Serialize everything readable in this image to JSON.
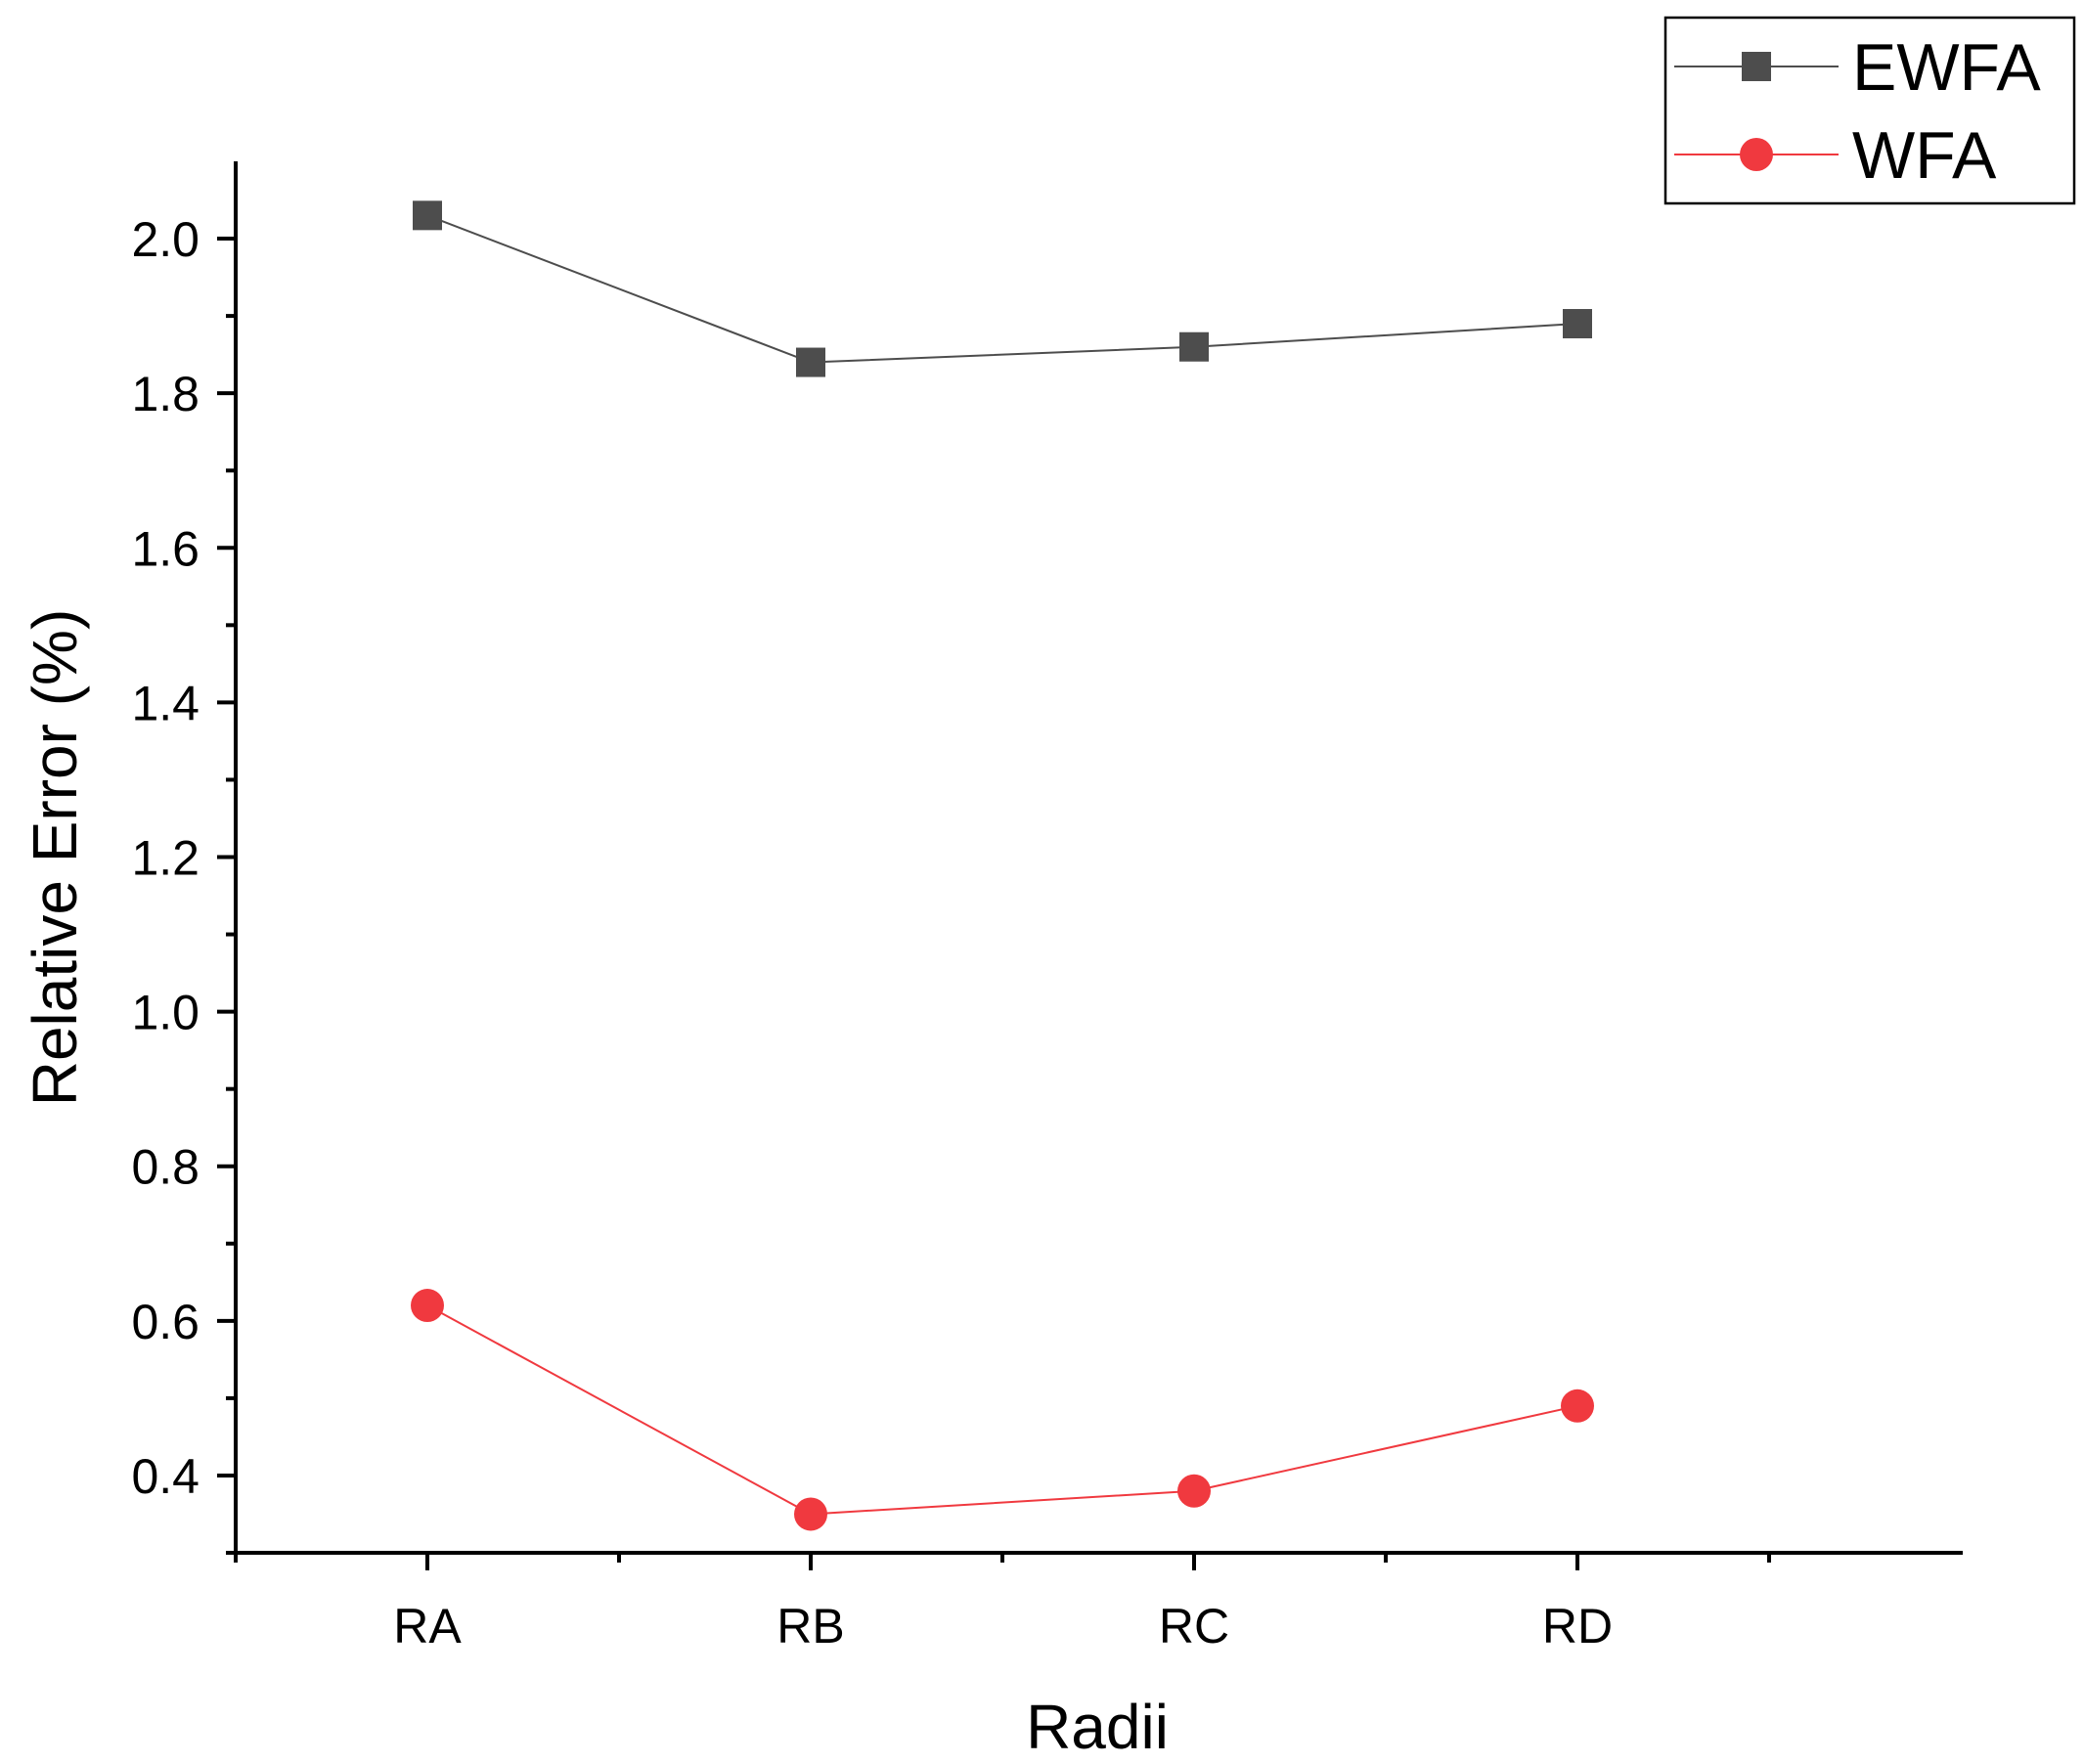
{
  "chart_data": {
    "type": "line",
    "title": "",
    "xlabel": "Radii",
    "ylabel": "Relative Error (%)",
    "categories": [
      "RA",
      "RB",
      "RC",
      "RD"
    ],
    "ylim": [
      0.3,
      2.1
    ],
    "yticks": [
      "0.4",
      "0.6",
      "0.8",
      "1.0",
      "1.2",
      "1.4",
      "1.6",
      "1.8",
      "2.0"
    ],
    "grid": false,
    "legend_position": "top-right",
    "series": [
      {
        "name": "EWFA",
        "marker": "square",
        "color": "#4d4d4d",
        "values": [
          2.03,
          1.84,
          1.86,
          1.89
        ]
      },
      {
        "name": "WFA",
        "marker": "circle",
        "color": "#f0393f",
        "values": [
          0.62,
          0.35,
          0.38,
          0.49
        ]
      }
    ]
  }
}
